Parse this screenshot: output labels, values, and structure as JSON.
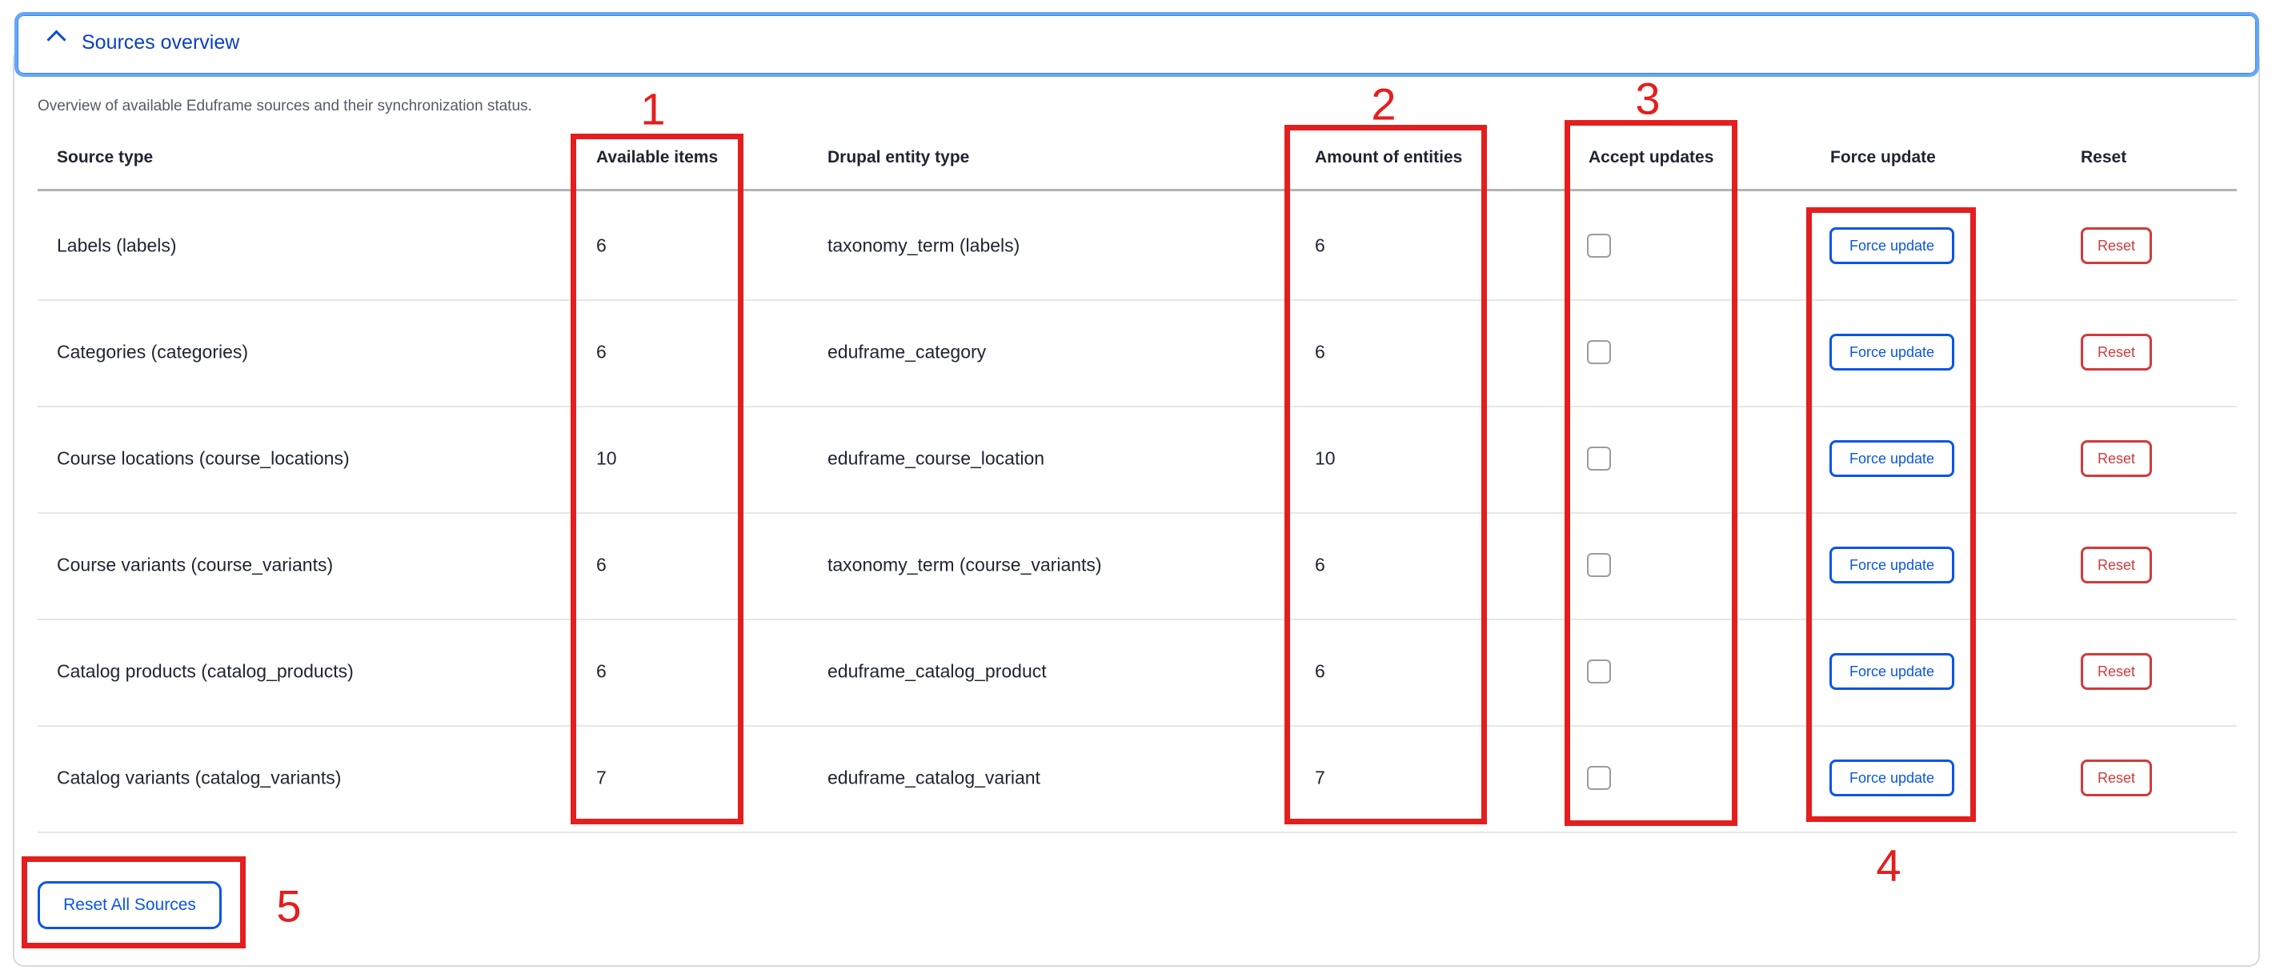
{
  "section": {
    "title": "Sources overview",
    "expanded": true,
    "description": "Overview of available Eduframe sources and their synchronization status."
  },
  "table": {
    "headers": [
      "Source type",
      "Available items",
      "Drupal entity type",
      "Amount of entities",
      "Accept updates",
      "Force update",
      "Reset"
    ],
    "rows": [
      {
        "source_type": "Labels (labels)",
        "available_items": "6",
        "entity_type": "taxonomy_term (labels)",
        "amount": "6",
        "accept_updates": false,
        "force_label": "Force update",
        "reset_label": "Reset"
      },
      {
        "source_type": "Categories (categories)",
        "available_items": "6",
        "entity_type": "eduframe_category",
        "amount": "6",
        "accept_updates": false,
        "force_label": "Force update",
        "reset_label": "Reset"
      },
      {
        "source_type": "Course locations (course_locations)",
        "available_items": "10",
        "entity_type": "eduframe_course_location",
        "amount": "10",
        "accept_updates": false,
        "force_label": "Force update",
        "reset_label": "Reset"
      },
      {
        "source_type": "Course variants (course_variants)",
        "available_items": "6",
        "entity_type": "taxonomy_term (course_variants)",
        "amount": "6",
        "accept_updates": false,
        "force_label": "Force update",
        "reset_label": "Reset"
      },
      {
        "source_type": "Catalog products (catalog_products)",
        "available_items": "6",
        "entity_type": "eduframe_catalog_product",
        "amount": "6",
        "accept_updates": false,
        "force_label": "Force update",
        "reset_label": "Reset"
      },
      {
        "source_type": "Catalog variants (catalog_variants)",
        "available_items": "7",
        "entity_type": "eduframe_catalog_variant",
        "amount": "7",
        "accept_updates": false,
        "force_label": "Force update",
        "reset_label": "Reset"
      }
    ]
  },
  "reset_all_label": "Reset All Sources",
  "annotations": [
    "1",
    "2",
    "3",
    "4",
    "5"
  ],
  "colors": {
    "primary": "#0b55e6",
    "danger": "#d03b3b",
    "annotation": "#e41e1e",
    "focus_ring": "#65a8f5"
  }
}
